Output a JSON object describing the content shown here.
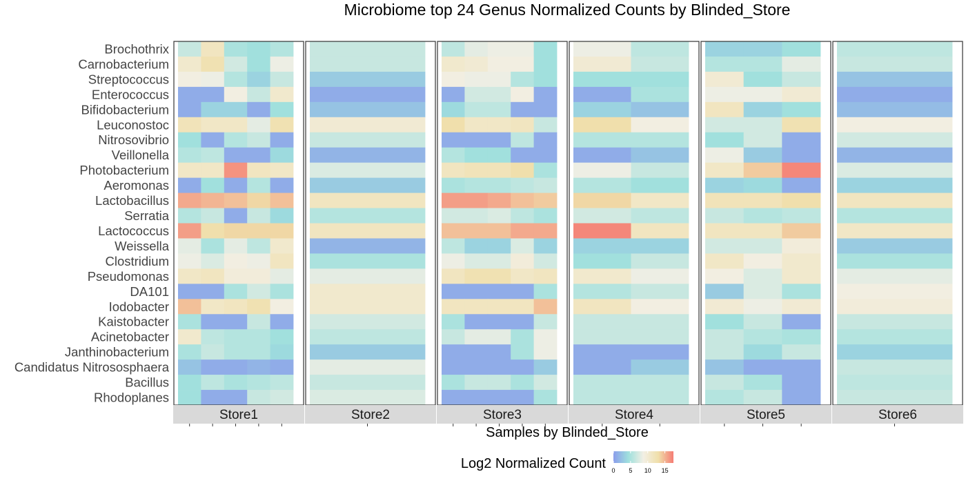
{
  "chart_data": {
    "type": "heatmap",
    "title": "Microbiome top 24 Genus Normalized Counts by Blinded_Store",
    "xlabel": "Samples by Blinded_Store",
    "legend": {
      "title": "Log2 Normalized Count",
      "ticks": [
        0,
        5,
        10,
        15
      ],
      "range": [
        0,
        17.5
      ],
      "colors": [
        "#8b9deb",
        "#9fe0dd",
        "#f2efe4",
        "#f0dfaa",
        "#f57c74"
      ]
    },
    "genera": [
      "Brochothrix",
      "Carnobacterium",
      "Streptococcus",
      "Enterococcus",
      "Bifidobacterium",
      "Leuconostoc",
      "Nitrosovibrio",
      "Veillonella",
      "Photobacterium",
      "Aeromonas",
      "Lactobacillus",
      "Serratia",
      "Lactococcus",
      "Weissella",
      "Clostridium",
      "Pseudomonas",
      "DA101",
      "Iodobacter",
      "Kaistobacter",
      "Acinetobacter",
      "Janthinobacterium",
      "Candidatus Nitrososphaera",
      "Bacillus",
      "Rhodoplanes"
    ],
    "stores": [
      {
        "name": "Store1",
        "samples": 5,
        "values": [
          [
            6.5,
            11.5,
            5.0,
            4.5,
            5.5
          ],
          [
            10.5,
            12.5,
            7.0,
            4.5,
            8.5
          ],
          [
            9.0,
            8.5,
            5.5,
            3.5,
            6.5
          ],
          [
            1.0,
            1.0,
            9.0,
            6.5,
            10.5
          ],
          [
            1.0,
            3.5,
            3.5,
            1.0,
            4.5
          ],
          [
            12.0,
            11.0,
            11.0,
            8.0,
            12.5
          ],
          [
            4.5,
            1.0,
            5.5,
            6.5,
            1.0
          ],
          [
            5.5,
            6.0,
            1.0,
            1.0,
            4.0
          ],
          [
            11.0,
            11.0,
            16.5,
            11.5,
            11.0
          ],
          [
            1.0,
            4.5,
            1.0,
            5.5,
            1.0
          ],
          [
            15.5,
            15.0,
            14.5,
            13.5,
            14.5
          ],
          [
            5.5,
            6.5,
            1.0,
            6.5,
            4.0
          ],
          [
            16.0,
            13.0,
            13.5,
            13.5,
            13.5
          ],
          [
            8.0,
            5.0,
            8.0,
            6.0,
            10.5
          ],
          [
            8.5,
            7.5,
            9.0,
            8.5,
            11.5
          ],
          [
            11.0,
            11.5,
            9.5,
            9.5,
            8.0
          ],
          [
            1.0,
            1.0,
            5.0,
            7.0,
            5.0
          ],
          [
            14.5,
            11.0,
            11.5,
            12.5,
            9.0
          ],
          [
            5.0,
            1.0,
            1.0,
            6.5,
            1.0
          ],
          [
            10.5,
            6.0,
            5.5,
            5.5,
            4.5
          ],
          [
            5.0,
            6.5,
            5.5,
            5.5,
            4.0
          ],
          [
            2.5,
            1.0,
            1.0,
            1.5,
            1.0
          ],
          [
            4.5,
            6.0,
            5.0,
            5.5,
            6.0
          ],
          [
            4.5,
            1.0,
            1.0,
            6.5,
            7.0
          ]
        ]
      },
      {
        "name": "Store2",
        "samples": 1,
        "values": [
          [
            6.5
          ],
          [
            6.5
          ],
          [
            3.0
          ],
          [
            1.0
          ],
          [
            2.5
          ],
          [
            10.0
          ],
          [
            6.5
          ],
          [
            1.5
          ],
          [
            7.5
          ],
          [
            3.0
          ],
          [
            11.5
          ],
          [
            5.5
          ],
          [
            11.5
          ],
          [
            1.5
          ],
          [
            5.0
          ],
          [
            8.0
          ],
          [
            10.5
          ],
          [
            10.5
          ],
          [
            7.0
          ],
          [
            6.0
          ],
          [
            3.0
          ],
          [
            8.0
          ],
          [
            6.5
          ],
          [
            7.5
          ]
        ]
      },
      {
        "name": "Store3",
        "samples": 5,
        "values": [
          [
            6.0,
            8.0,
            8.5,
            8.5,
            4.5
          ],
          [
            10.5,
            10.0,
            9.0,
            9.0,
            4.5
          ],
          [
            9.0,
            8.5,
            8.5,
            5.5,
            4.5
          ],
          [
            1.0,
            7.0,
            7.0,
            9.0,
            1.0
          ],
          [
            4.0,
            6.0,
            6.0,
            1.0,
            1.0
          ],
          [
            13.0,
            11.0,
            11.0,
            11.5,
            6.5
          ],
          [
            1.0,
            1.0,
            1.0,
            6.0,
            1.0
          ],
          [
            5.5,
            4.5,
            4.5,
            1.0,
            1.0
          ],
          [
            11.5,
            12.0,
            12.0,
            13.0,
            5.0
          ],
          [
            5.0,
            5.5,
            5.5,
            6.0,
            6.5
          ],
          [
            16.0,
            16.0,
            15.5,
            14.5,
            14.0
          ],
          [
            7.0,
            7.0,
            7.5,
            6.0,
            5.0
          ],
          [
            14.5,
            14.5,
            14.5,
            15.5,
            15.5
          ],
          [
            6.0,
            3.5,
            3.5,
            7.5,
            3.5
          ],
          [
            8.5,
            7.5,
            7.5,
            9.5,
            7.0
          ],
          [
            11.5,
            12.5,
            12.5,
            11.0,
            11.5
          ],
          [
            1.0,
            1.0,
            1.0,
            1.0,
            5.0
          ],
          [
            11.5,
            11.5,
            11.5,
            11.5,
            14.5
          ],
          [
            5.0,
            1.0,
            1.0,
            1.0,
            6.5
          ],
          [
            6.5,
            8.0,
            8.0,
            5.0,
            8.5
          ],
          [
            1.0,
            1.0,
            1.0,
            5.0,
            8.5
          ],
          [
            1.0,
            1.0,
            1.0,
            1.0,
            3.0
          ],
          [
            5.0,
            6.5,
            6.5,
            5.0,
            7.0
          ],
          [
            1.0,
            1.0,
            1.0,
            1.0,
            5.0
          ]
        ]
      },
      {
        "name": "Store4",
        "samples": 2,
        "values": [
          [
            8.5,
            6.0
          ],
          [
            10.0,
            6.5
          ],
          [
            4.5,
            4.5
          ],
          [
            1.0,
            5.0
          ],
          [
            3.5,
            2.5
          ],
          [
            13.0,
            9.0
          ],
          [
            5.5,
            5.5
          ],
          [
            1.0,
            2.5
          ],
          [
            8.5,
            6.5
          ],
          [
            5.5,
            4.5
          ],
          [
            13.5,
            11.0
          ],
          [
            7.0,
            6.0
          ],
          [
            17.0,
            11.5
          ],
          [
            3.5,
            3.5
          ],
          [
            4.5,
            6.5
          ],
          [
            10.5,
            8.5
          ],
          [
            5.5,
            6.5
          ],
          [
            11.5,
            9.0
          ],
          [
            6.5,
            6.5
          ],
          [
            6.5,
            6.5
          ],
          [
            1.0,
            1.0
          ],
          [
            1.0,
            3.0
          ],
          [
            6.0,
            6.0
          ],
          [
            6.0,
            6.0
          ]
        ]
      },
      {
        "name": "Store5",
        "samples": 3,
        "values": [
          [
            3.5,
            3.5,
            4.5
          ],
          [
            5.5,
            5.5,
            8.0
          ],
          [
            10.0,
            4.5,
            6.5
          ],
          [
            8.5,
            8.5,
            10.0
          ],
          [
            11.5,
            3.5,
            4.5
          ],
          [
            7.0,
            7.0,
            12.5
          ],
          [
            4.5,
            7.0,
            1.0
          ],
          [
            8.5,
            3.0,
            1.0
          ],
          [
            11.0,
            14.0,
            17.0
          ],
          [
            3.5,
            4.0,
            1.0
          ],
          [
            12.0,
            12.0,
            13.0
          ],
          [
            6.5,
            5.5,
            6.0
          ],
          [
            11.5,
            11.5,
            14.0
          ],
          [
            7.0,
            7.0,
            9.5
          ],
          [
            11.0,
            9.0,
            10.5
          ],
          [
            9.0,
            7.5,
            10.5
          ],
          [
            3.0,
            7.5,
            5.0
          ],
          [
            10.0,
            8.5,
            10.0
          ],
          [
            4.5,
            6.5,
            1.0
          ],
          [
            6.5,
            5.5,
            5.0
          ],
          [
            6.5,
            4.0,
            6.5
          ],
          [
            2.5,
            1.0,
            1.0
          ],
          [
            6.5,
            5.0,
            1.0
          ],
          [
            5.5,
            6.5,
            1.0
          ]
        ]
      },
      {
        "name": "Store6",
        "samples": 1,
        "values": [
          [
            6.0
          ],
          [
            6.5
          ],
          [
            2.5
          ],
          [
            1.0
          ],
          [
            2.0
          ],
          [
            9.0
          ],
          [
            7.0
          ],
          [
            1.5
          ],
          [
            7.5
          ],
          [
            3.5
          ],
          [
            11.5
          ],
          [
            5.5
          ],
          [
            11.0
          ],
          [
            3.0
          ],
          [
            5.0
          ],
          [
            8.0
          ],
          [
            9.0
          ],
          [
            9.5
          ],
          [
            6.5
          ],
          [
            5.5
          ],
          [
            3.5
          ],
          [
            6.5
          ],
          [
            6.0
          ],
          [
            6.5
          ]
        ]
      }
    ]
  }
}
